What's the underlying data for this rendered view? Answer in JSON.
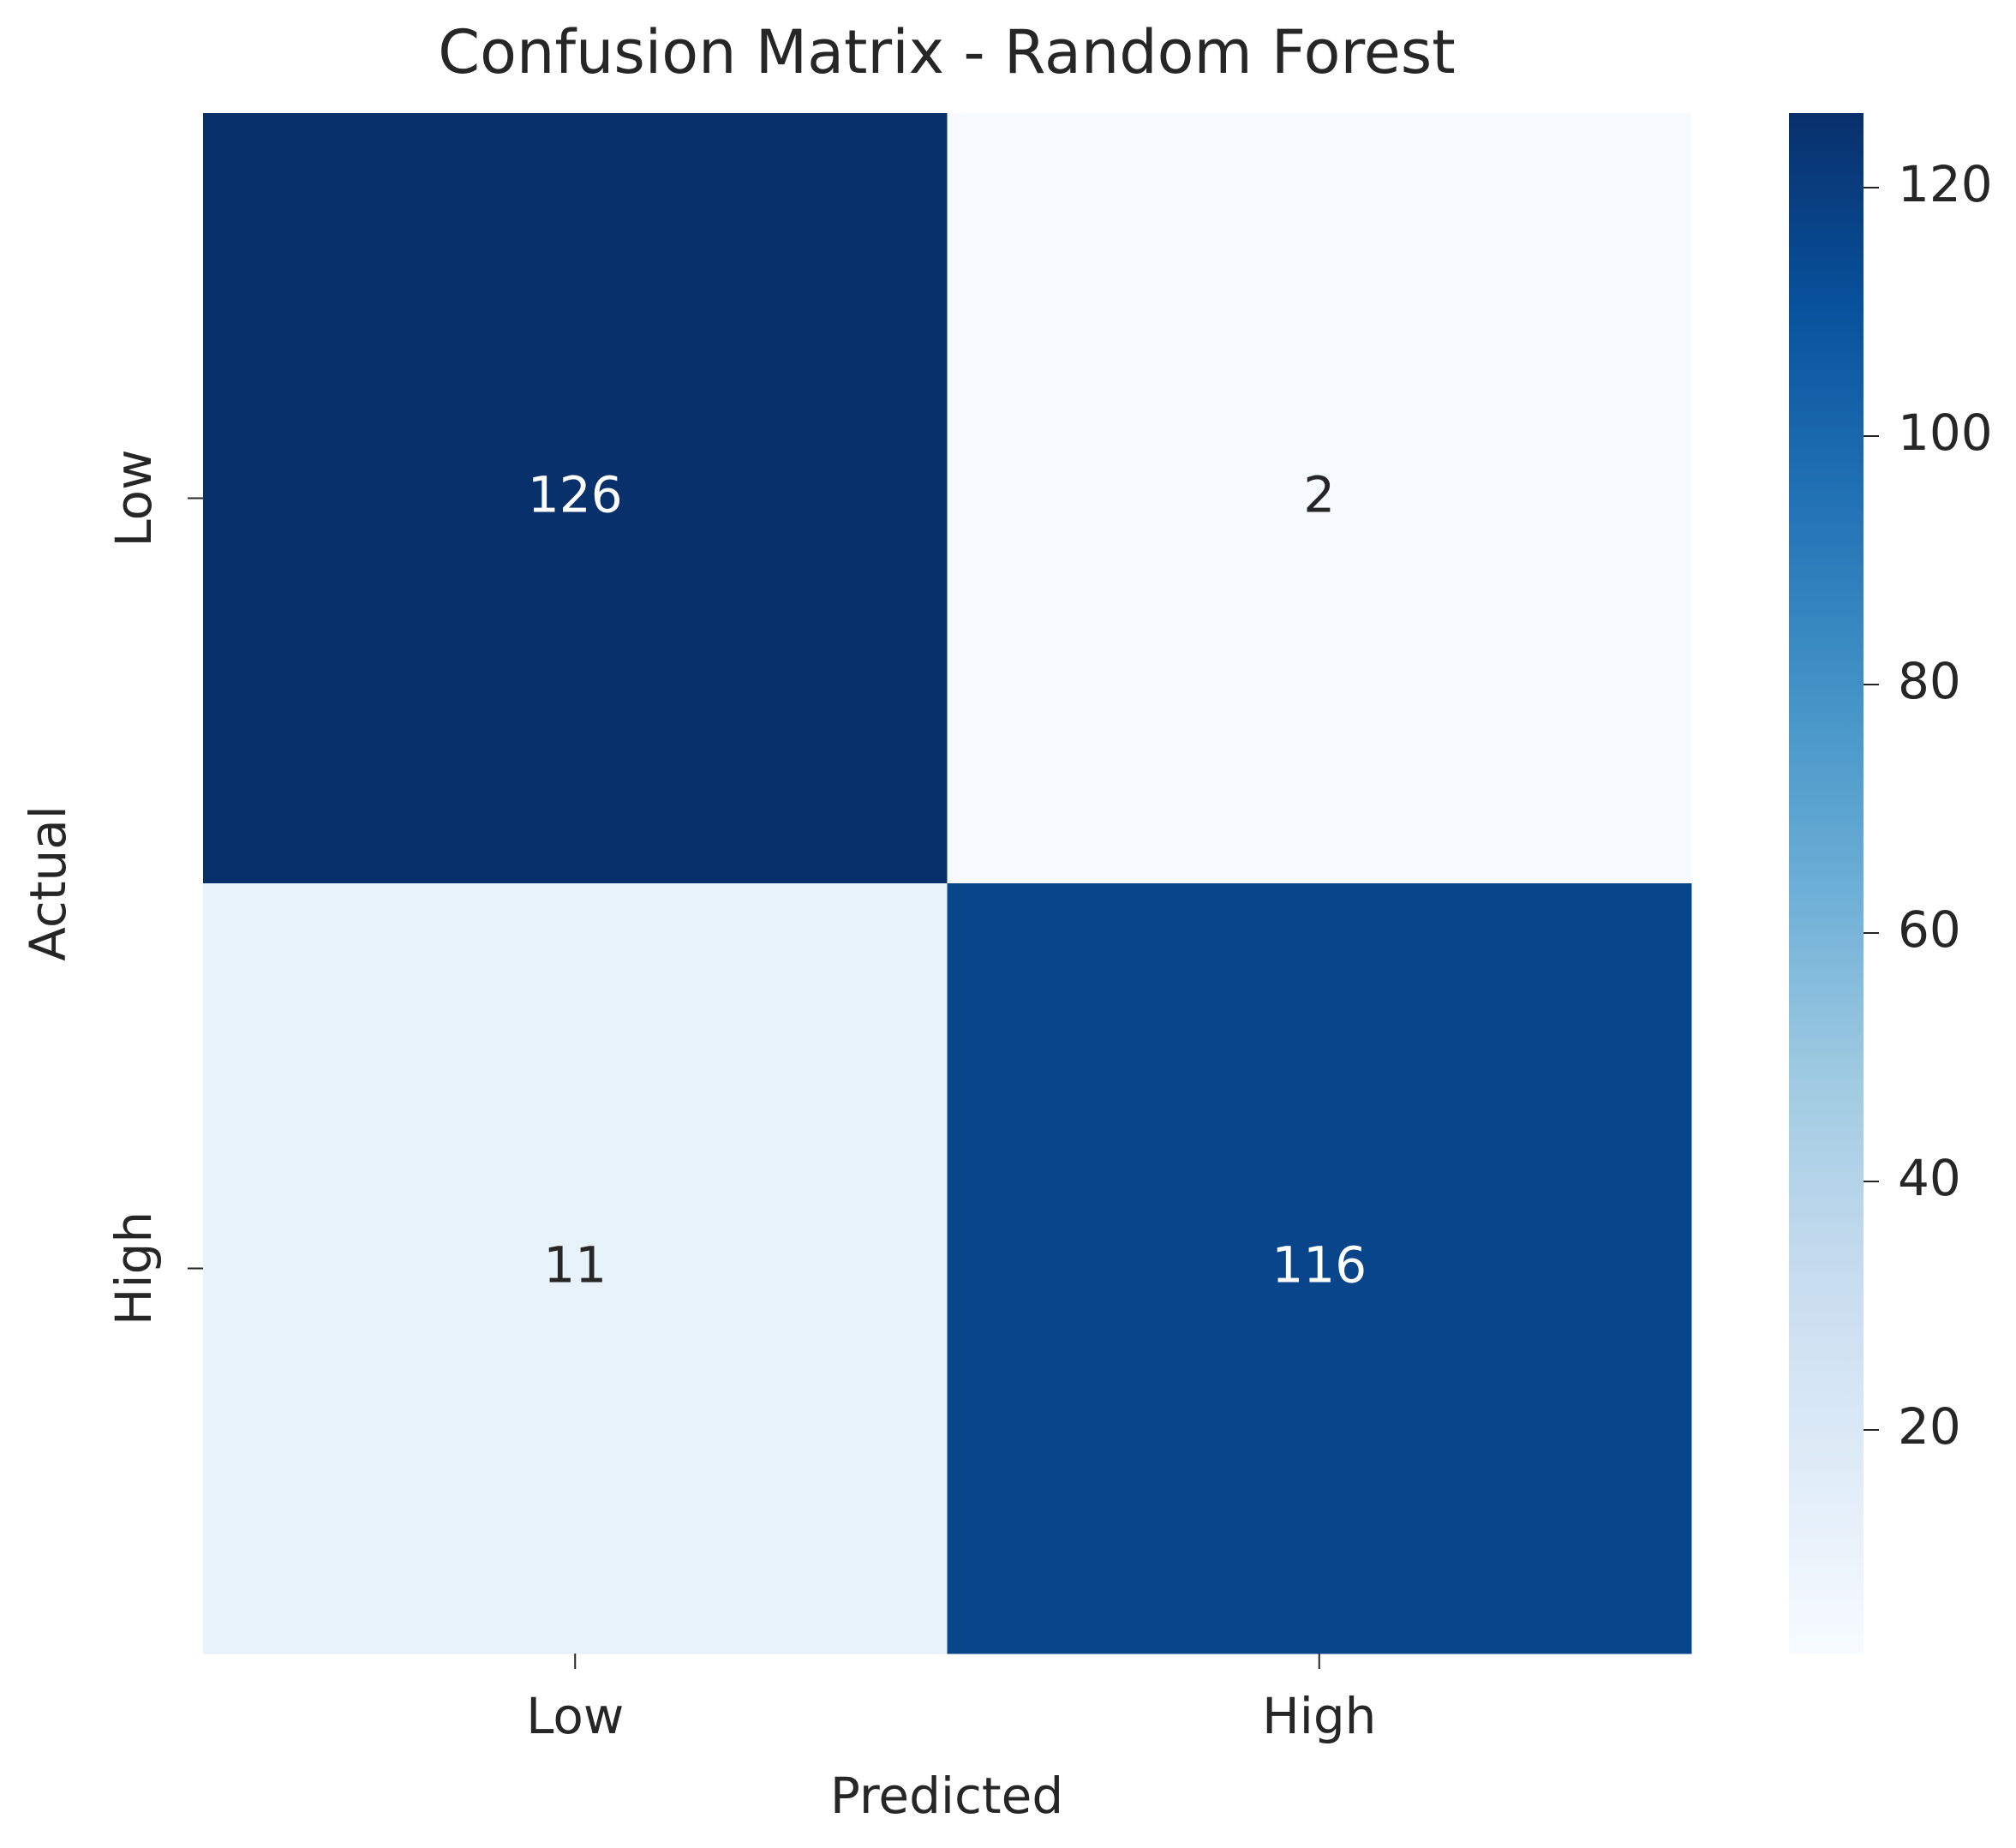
{
  "chart_data": {
    "type": "heatmap",
    "title": "Confusion Matrix - Random Forest",
    "xlabel": "Predicted",
    "ylabel": "Actual",
    "x_categories": [
      "Low",
      "High"
    ],
    "y_categories": [
      "Low",
      "High"
    ],
    "values": [
      [
        126,
        2
      ],
      [
        11,
        116
      ]
    ],
    "colormap": [
      "#f7fbff",
      "#deebf7",
      "#c6dbef",
      "#9ecae1",
      "#6baed6",
      "#4292c6",
      "#2171b5",
      "#08519c",
      "#08306b"
    ],
    "clim": [
      2,
      126
    ],
    "cticks": [
      20,
      40,
      60,
      80,
      100,
      120
    ]
  }
}
